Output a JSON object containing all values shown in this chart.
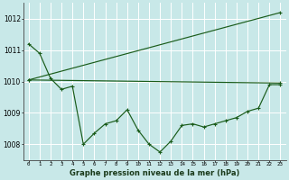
{
  "background_color": "#c8e8e8",
  "grid_color": "#ffffff",
  "line_color": "#1a5c1a",
  "xlabel": "Graphe pression niveau de la mer (hPa)",
  "ylim": [
    1007.5,
    1012.5
  ],
  "xlim": [
    -0.5,
    23.5
  ],
  "yticks": [
    1008,
    1009,
    1010,
    1011,
    1012
  ],
  "xtick_labels": [
    "0",
    "1",
    "2",
    "3",
    "4",
    "5",
    "6",
    "7",
    "8",
    "9",
    "10",
    "11",
    "12",
    "13",
    "14",
    "15",
    "16",
    "17",
    "18",
    "19",
    "20",
    "21",
    "22",
    "23"
  ],
  "series1_x": [
    0,
    1,
    2,
    3,
    4,
    5,
    6,
    7,
    8,
    9,
    10,
    11,
    12,
    13,
    14,
    15,
    16,
    17,
    18,
    19,
    20,
    21,
    22,
    23
  ],
  "series1_y": [
    1011.2,
    1010.9,
    1010.1,
    1009.75,
    1009.85,
    1008.0,
    1008.35,
    1008.65,
    1008.75,
    1009.1,
    1008.45,
    1008.0,
    1007.75,
    1008.1,
    1008.6,
    1008.65,
    1008.55,
    1008.65,
    1008.75,
    1008.85,
    1009.05,
    1009.15,
    1009.9,
    1009.9
  ],
  "series2_x": [
    0,
    23
  ],
  "series2_y": [
    1010.05,
    1009.95
  ],
  "series3_x": [
    0,
    23
  ],
  "series3_y": [
    1010.05,
    1012.2
  ]
}
